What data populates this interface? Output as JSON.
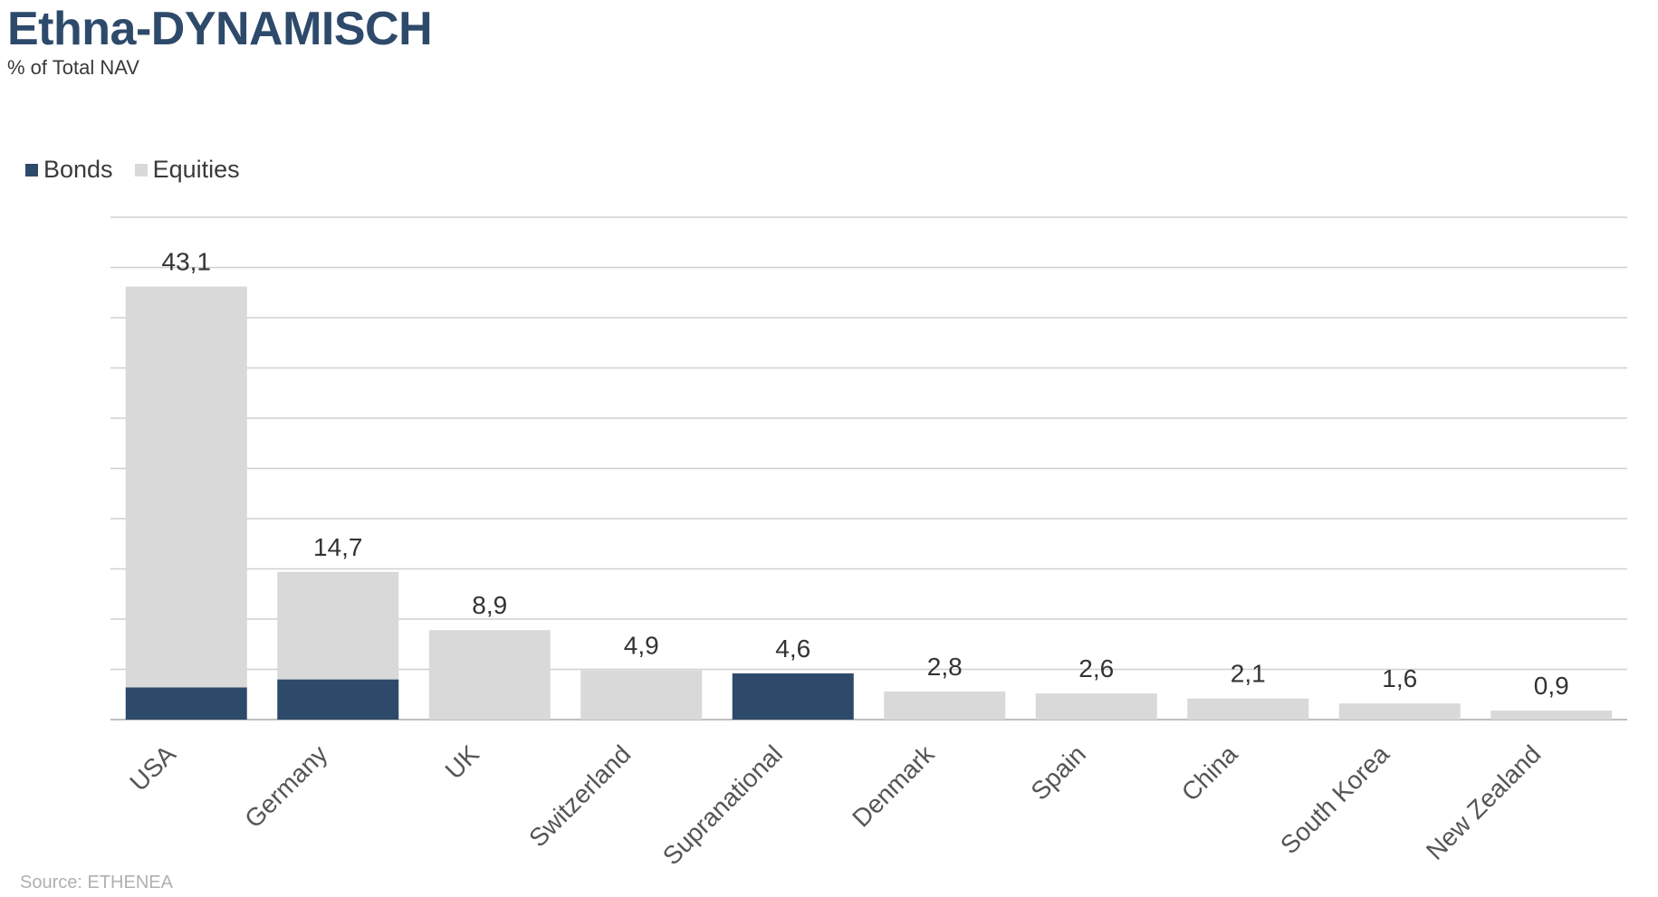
{
  "header": {
    "title": "Ethna-DYNAMISCH",
    "subtitle": "% of Total NAV"
  },
  "footer": {
    "source": "Source: ETHENEA"
  },
  "colors": {
    "bonds": "#2e4a6b",
    "equities": "#d9d9d9",
    "grid": "#d0d0d0",
    "axis": "#bfbfbf"
  },
  "chart_data": {
    "type": "bar",
    "stacked": true,
    "title": "Ethna-DYNAMISCH",
    "subtitle": "% of Total NAV",
    "categories": [
      "USA",
      "Germany",
      "UK",
      "Switzerland",
      "Supranational",
      "Denmark",
      "Spain",
      "China",
      "South Korea",
      "New Zealand"
    ],
    "series": [
      {
        "name": "Bonds",
        "values": [
          3.2,
          4.0,
          0,
          0,
          4.6,
          0,
          0,
          0,
          0,
          0
        ]
      },
      {
        "name": "Equities",
        "values": [
          39.9,
          10.7,
          8.9,
          4.9,
          0,
          2.8,
          2.6,
          2.1,
          1.6,
          0.9
        ]
      }
    ],
    "totals": [
      43.1,
      14.7,
      8.9,
      4.9,
      4.6,
      2.8,
      2.6,
      2.1,
      1.6,
      0.9
    ],
    "total_labels": [
      "43,1",
      "14,7",
      "8,9",
      "4,9",
      "4,6",
      "2,8",
      "2,6",
      "2,1",
      "1,6",
      "0,9"
    ],
    "ylim": [
      0,
      50
    ],
    "grid_step": 5,
    "grid": true,
    "legend_position": "top-left",
    "xlabel": "",
    "ylabel": ""
  }
}
